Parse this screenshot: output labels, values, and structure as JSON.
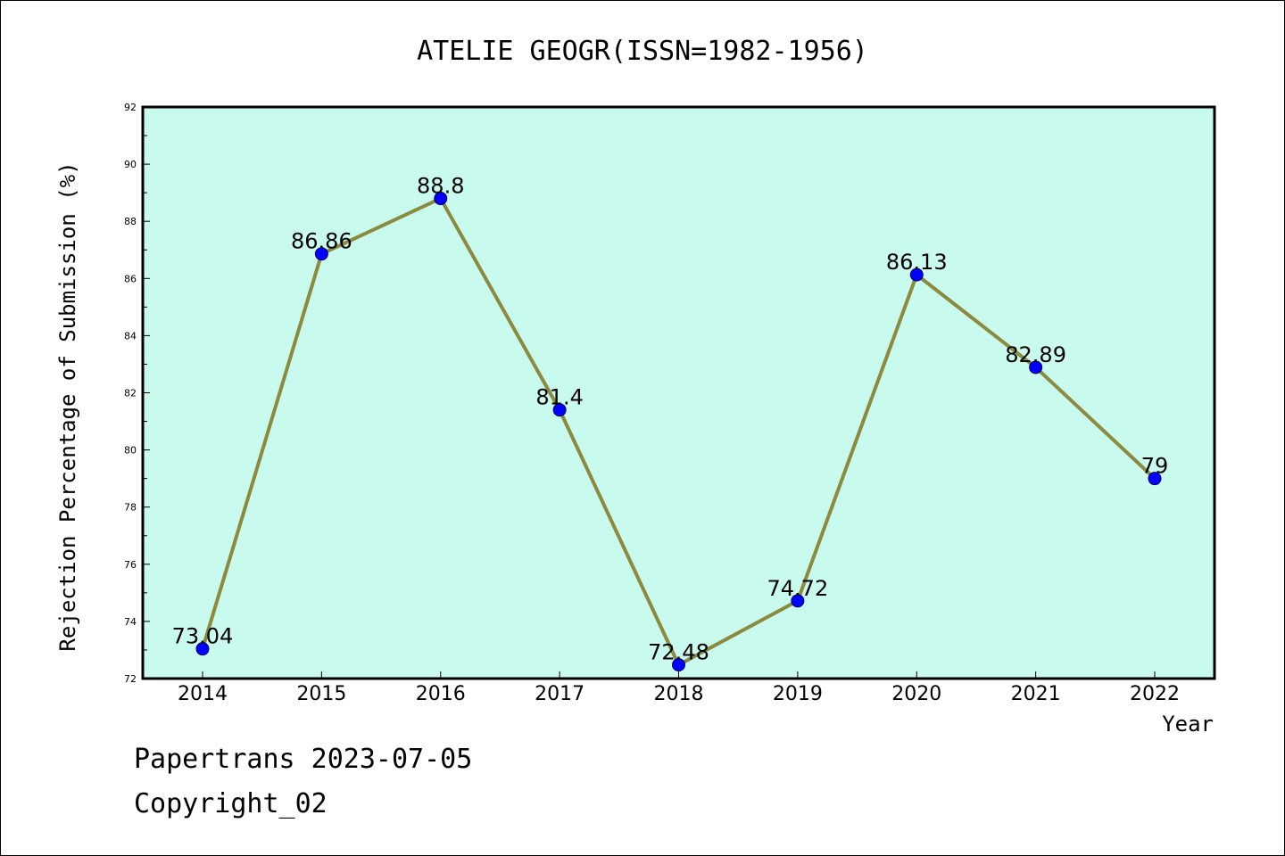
{
  "chart_data": {
    "type": "line",
    "title": "ATELIE GEOGR(ISSN=1982-1956)",
    "xlabel": "Year",
    "ylabel": "Rejection Percentage of Submission (%)",
    "categories": [
      "2014",
      "2015",
      "2016",
      "2017",
      "2018",
      "2019",
      "2020",
      "2021",
      "2022"
    ],
    "series": [
      {
        "values": [
          73.04,
          86.86,
          88.8,
          81.4,
          72.48,
          74.72,
          86.13,
          82.89,
          79
        ],
        "labels": [
          "73.04",
          "86.86",
          "88.8",
          "81.4",
          "72.48",
          "74.72",
          "86.13",
          "82.89",
          "79"
        ]
      }
    ],
    "ylim": [
      72,
      92
    ],
    "yticks": [
      "72",
      "74",
      "76",
      "78",
      "80",
      "82",
      "84",
      "86",
      "88",
      "90",
      "92"
    ],
    "grid": false,
    "colors": {
      "plot_background": "#c8fbee",
      "line": "#8b8a3e",
      "marker": "#0000ff"
    }
  },
  "footer": {
    "line1": "Papertrans 2023-07-05",
    "line2": "Copyright_02"
  }
}
